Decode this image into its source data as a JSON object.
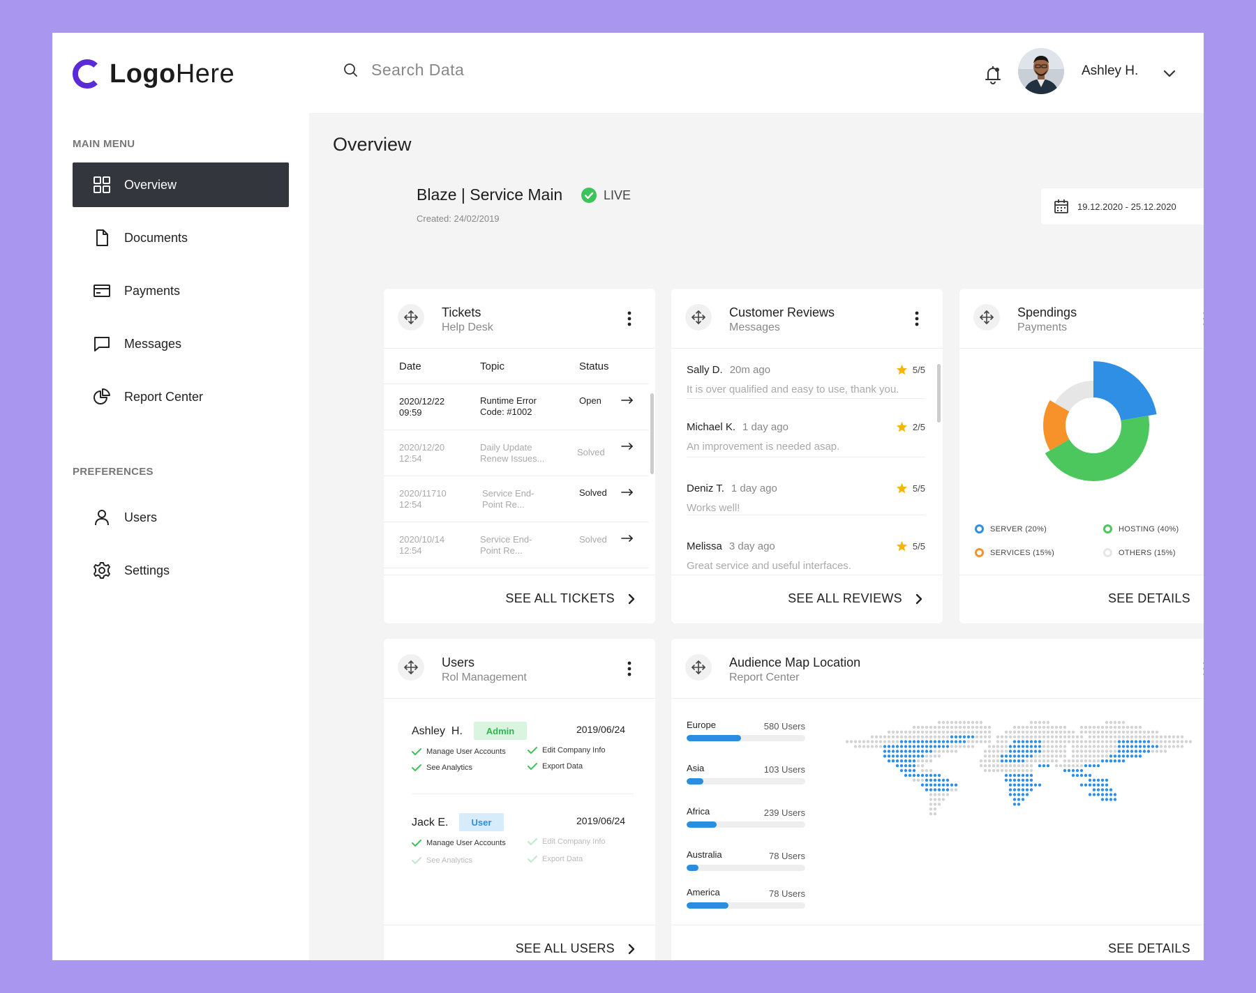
{
  "brand": {
    "logo_bold": "Logo",
    "logo_light": "Here",
    "accent": "#5b2bd7"
  },
  "search": {
    "placeholder": "Search Data"
  },
  "user": {
    "name": "Ashley H."
  },
  "sidebar": {
    "main_menu_label": "MAIN MENU",
    "preferences_label": "PREFERENCES",
    "items": [
      {
        "label": "Overview",
        "icon": "grid-icon",
        "active": true
      },
      {
        "label": "Documents",
        "icon": "document-icon"
      },
      {
        "label": "Payments",
        "icon": "card-icon"
      },
      {
        "label": "Messages",
        "icon": "chat-icon"
      },
      {
        "label": "Report Center",
        "icon": "pie-chart-icon"
      }
    ],
    "pref_items": [
      {
        "label": "Users",
        "icon": "user-icon"
      },
      {
        "label": "Settings",
        "icon": "gear-icon"
      }
    ]
  },
  "overview": {
    "title": "Overview",
    "service_title": "Blaze | Service Main",
    "service_created": "Created: 24/02/2019",
    "status": "LIVE",
    "status_color": "#3cc35a",
    "date_range": "19.12.2020 - 25.12.2020"
  },
  "tickets": {
    "title": "Tickets",
    "subtitle": "Help Desk",
    "columns": [
      "Date",
      "Topic",
      "Status"
    ],
    "rows": [
      {
        "date1": "2020/12/22",
        "date2": "09:59",
        "topic1": "Runtime Error",
        "topic2": "Code: #1002",
        "status": "Open",
        "dim": false
      },
      {
        "date1": "2020/12/20",
        "date2": "12:54",
        "topic1": "Daily Update",
        "topic2": "Renew Issues...",
        "status": "Solved",
        "dim": true
      },
      {
        "date1": "2020/11710",
        "date2": "12:54",
        "topic1": "Service End-",
        "topic2": "Point Re...",
        "status": "Solved",
        "dim": true
      },
      {
        "date1": "2020/10/14",
        "date2": "12:54",
        "topic1": "Service End-",
        "topic2": "Point Re...",
        "status": "Solved",
        "dim": true
      }
    ],
    "footer": "SEE ALL TICKETS"
  },
  "reviews": {
    "title": "Customer Reviews",
    "subtitle": "Messages",
    "items": [
      {
        "name": "Sally D.",
        "time": "20m ago",
        "rating": "5/5",
        "text": "It is over qualified and easy to use, thank you."
      },
      {
        "name": "Michael K.",
        "time": "1 day ago",
        "rating": "2/5",
        "text": "An improvement is needed asap."
      },
      {
        "name": "Deniz T.",
        "time": "1 day ago",
        "rating": "5/5",
        "text": "Works well!"
      },
      {
        "name": "Melissa",
        "time": "3 day ago",
        "rating": "5/5",
        "text": "Great service and useful interfaces."
      }
    ],
    "footer": "SEE ALL REVIEWS"
  },
  "spendings": {
    "title": "Spendings",
    "subtitle": "Payments",
    "legend": [
      {
        "label": "SERVER (20%)",
        "color": "#2f8fe4",
        "value": 20
      },
      {
        "label": "HOSTING (40%)",
        "color": "#4cc75d",
        "value": 40
      },
      {
        "label": "SERVICES (15%)",
        "color": "#f7922a",
        "value": 15
      },
      {
        "label": "OTHERS (15%)",
        "color": "#e6e6e6",
        "value": 15
      }
    ],
    "footer": "SEE DETAILS"
  },
  "users_card": {
    "title": "Users",
    "subtitle": "Rol Management",
    "users": [
      {
        "name": "Ashley  H.",
        "role": "Admin",
        "date": "2019/06/24",
        "perms": [
          {
            "label": "Manage User Accounts",
            "on": true
          },
          {
            "label": "Edit Company Info",
            "on": true
          },
          {
            "label": "See Analytics",
            "on": true
          },
          {
            "label": "Export Data",
            "on": true
          }
        ]
      },
      {
        "name": "Jack E.",
        "role": "User",
        "date": "2019/06/24",
        "perms": [
          {
            "label": "Manage User Accounts",
            "on": true
          },
          {
            "label": "Edit Company Info",
            "on": false
          },
          {
            "label": "See Analytics",
            "on": false
          },
          {
            "label": "Export Data",
            "on": false
          }
        ]
      }
    ],
    "footer": "SEE ALL USERS"
  },
  "audience": {
    "title": "Audience Map Location",
    "subtitle": "Report Center",
    "regions": [
      {
        "name": "Europe",
        "users": "580 Users",
        "fill": 0.46
      },
      {
        "name": "Asia",
        "users": "103 Users",
        "fill": 0.14
      },
      {
        "name": "Africa",
        "users": "239 Users",
        "fill": 0.25
      },
      {
        "name": "Australia",
        "users": "78 Users",
        "fill": 0.1
      },
      {
        "name": "America",
        "users": "78 Users",
        "fill": 0.35
      }
    ],
    "footer": "SEE DETAILS"
  }
}
